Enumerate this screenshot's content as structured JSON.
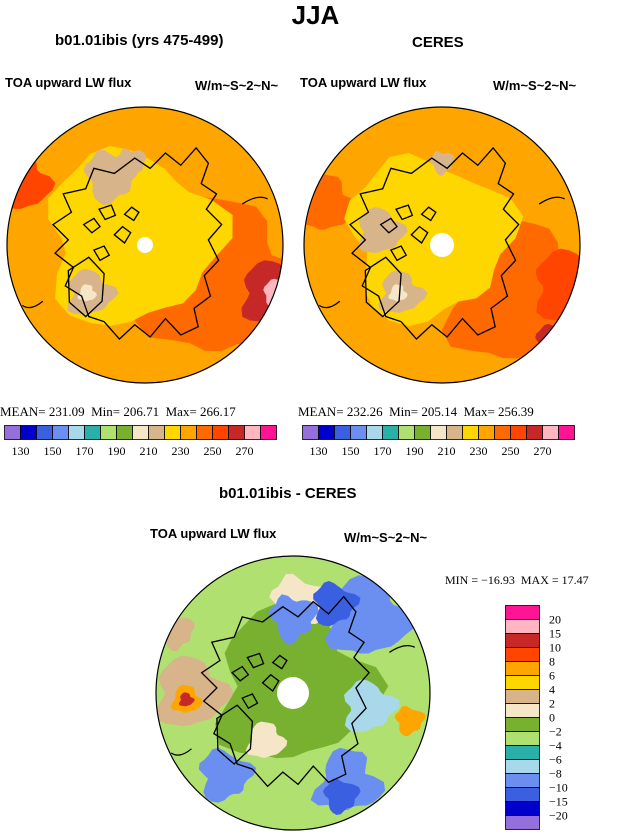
{
  "figure": {
    "season": "JJA"
  },
  "panels": [
    {
      "title": "b01.01ibis (yrs 475-499)",
      "variable": "TOA upward LW flux",
      "units": "W/m~S~2~N~",
      "stats": {
        "mean_label": "MEAN=",
        "mean": "231.09",
        "min_label": "Min=",
        "min": "206.71",
        "max_label": "Max=",
        "max": "266.17"
      }
    },
    {
      "title": "CERES",
      "variable": "TOA upward LW flux",
      "units": "W/m~S~2~N~",
      "stats": {
        "mean_label": "MEAN=",
        "mean": "232.26",
        "min_label": "Min=",
        "min": "205.14",
        "max_label": "Max=",
        "max": "256.39"
      }
    },
    {
      "title": "b01.01ibis - CERES",
      "variable": "TOA upward LW flux",
      "units": "W/m~S~2~N~",
      "stats": {
        "min_label": "MIN =",
        "min": "−16.93",
        "max_label": "MAX =",
        "max": "17.47"
      }
    }
  ],
  "colorbars": {
    "absolute": {
      "colors": [
        "#9370db",
        "#0000cd",
        "#3a5fe0",
        "#6a8ff0",
        "#a8d8ea",
        "#2ab0a8",
        "#b0e070",
        "#78b030",
        "#f5e6c8",
        "#d8b48a",
        "#ffd700",
        "#ffa500",
        "#ff6a00",
        "#ff4500",
        "#c62828",
        "#ffb6c1",
        "#ff1493"
      ],
      "tick_labels": [
        "130",
        "150",
        "170",
        "190",
        "210",
        "230",
        "250",
        "270"
      ]
    },
    "difference": {
      "colors": [
        "#ff1493",
        "#ffb6c1",
        "#c62828",
        "#ff4500",
        "#ffa500",
        "#ffd700",
        "#d8b48a",
        "#f5e6c8",
        "#78b030",
        "#b0e070",
        "#2ab0a8",
        "#a8d8ea",
        "#6a8ff0",
        "#3a5fe0",
        "#0000cd",
        "#9370db"
      ],
      "tick_labels": [
        "20",
        "15",
        "10",
        "8",
        "6",
        "4",
        "2",
        "0",
        "−2",
        "−4",
        "−6",
        "−8",
        "−10",
        "−15",
        "−20"
      ]
    }
  },
  "chart_data": [
    {
      "type": "heatmap",
      "title": "b01.01ibis (yrs 475-499)",
      "subtitle": "TOA upward LW flux",
      "units": "W/m~S~2~N~",
      "projection": "north polar stereographic",
      "mean": 231.09,
      "min": 206.71,
      "max": 266.17,
      "contour_levels": [
        130,
        140,
        150,
        160,
        170,
        180,
        190,
        200,
        210,
        220,
        230,
        240,
        250,
        260,
        270
      ]
    },
    {
      "type": "heatmap",
      "title": "CERES",
      "subtitle": "TOA upward LW flux",
      "units": "W/m~S~2~N~",
      "projection": "north polar stereographic",
      "mean": 232.26,
      "min": 205.14,
      "max": 256.39,
      "contour_levels": [
        130,
        140,
        150,
        160,
        170,
        180,
        190,
        200,
        210,
        220,
        230,
        240,
        250,
        260,
        270
      ]
    },
    {
      "type": "heatmap",
      "title": "b01.01ibis - CERES",
      "subtitle": "TOA upward LW flux",
      "units": "W/m~S~2~N~",
      "projection": "north polar stereographic",
      "min": -16.93,
      "max": 17.47,
      "contour_levels": [
        -20,
        -15,
        -10,
        -8,
        -6,
        -4,
        -2,
        0,
        2,
        4,
        6,
        8,
        10,
        15,
        20
      ]
    }
  ]
}
